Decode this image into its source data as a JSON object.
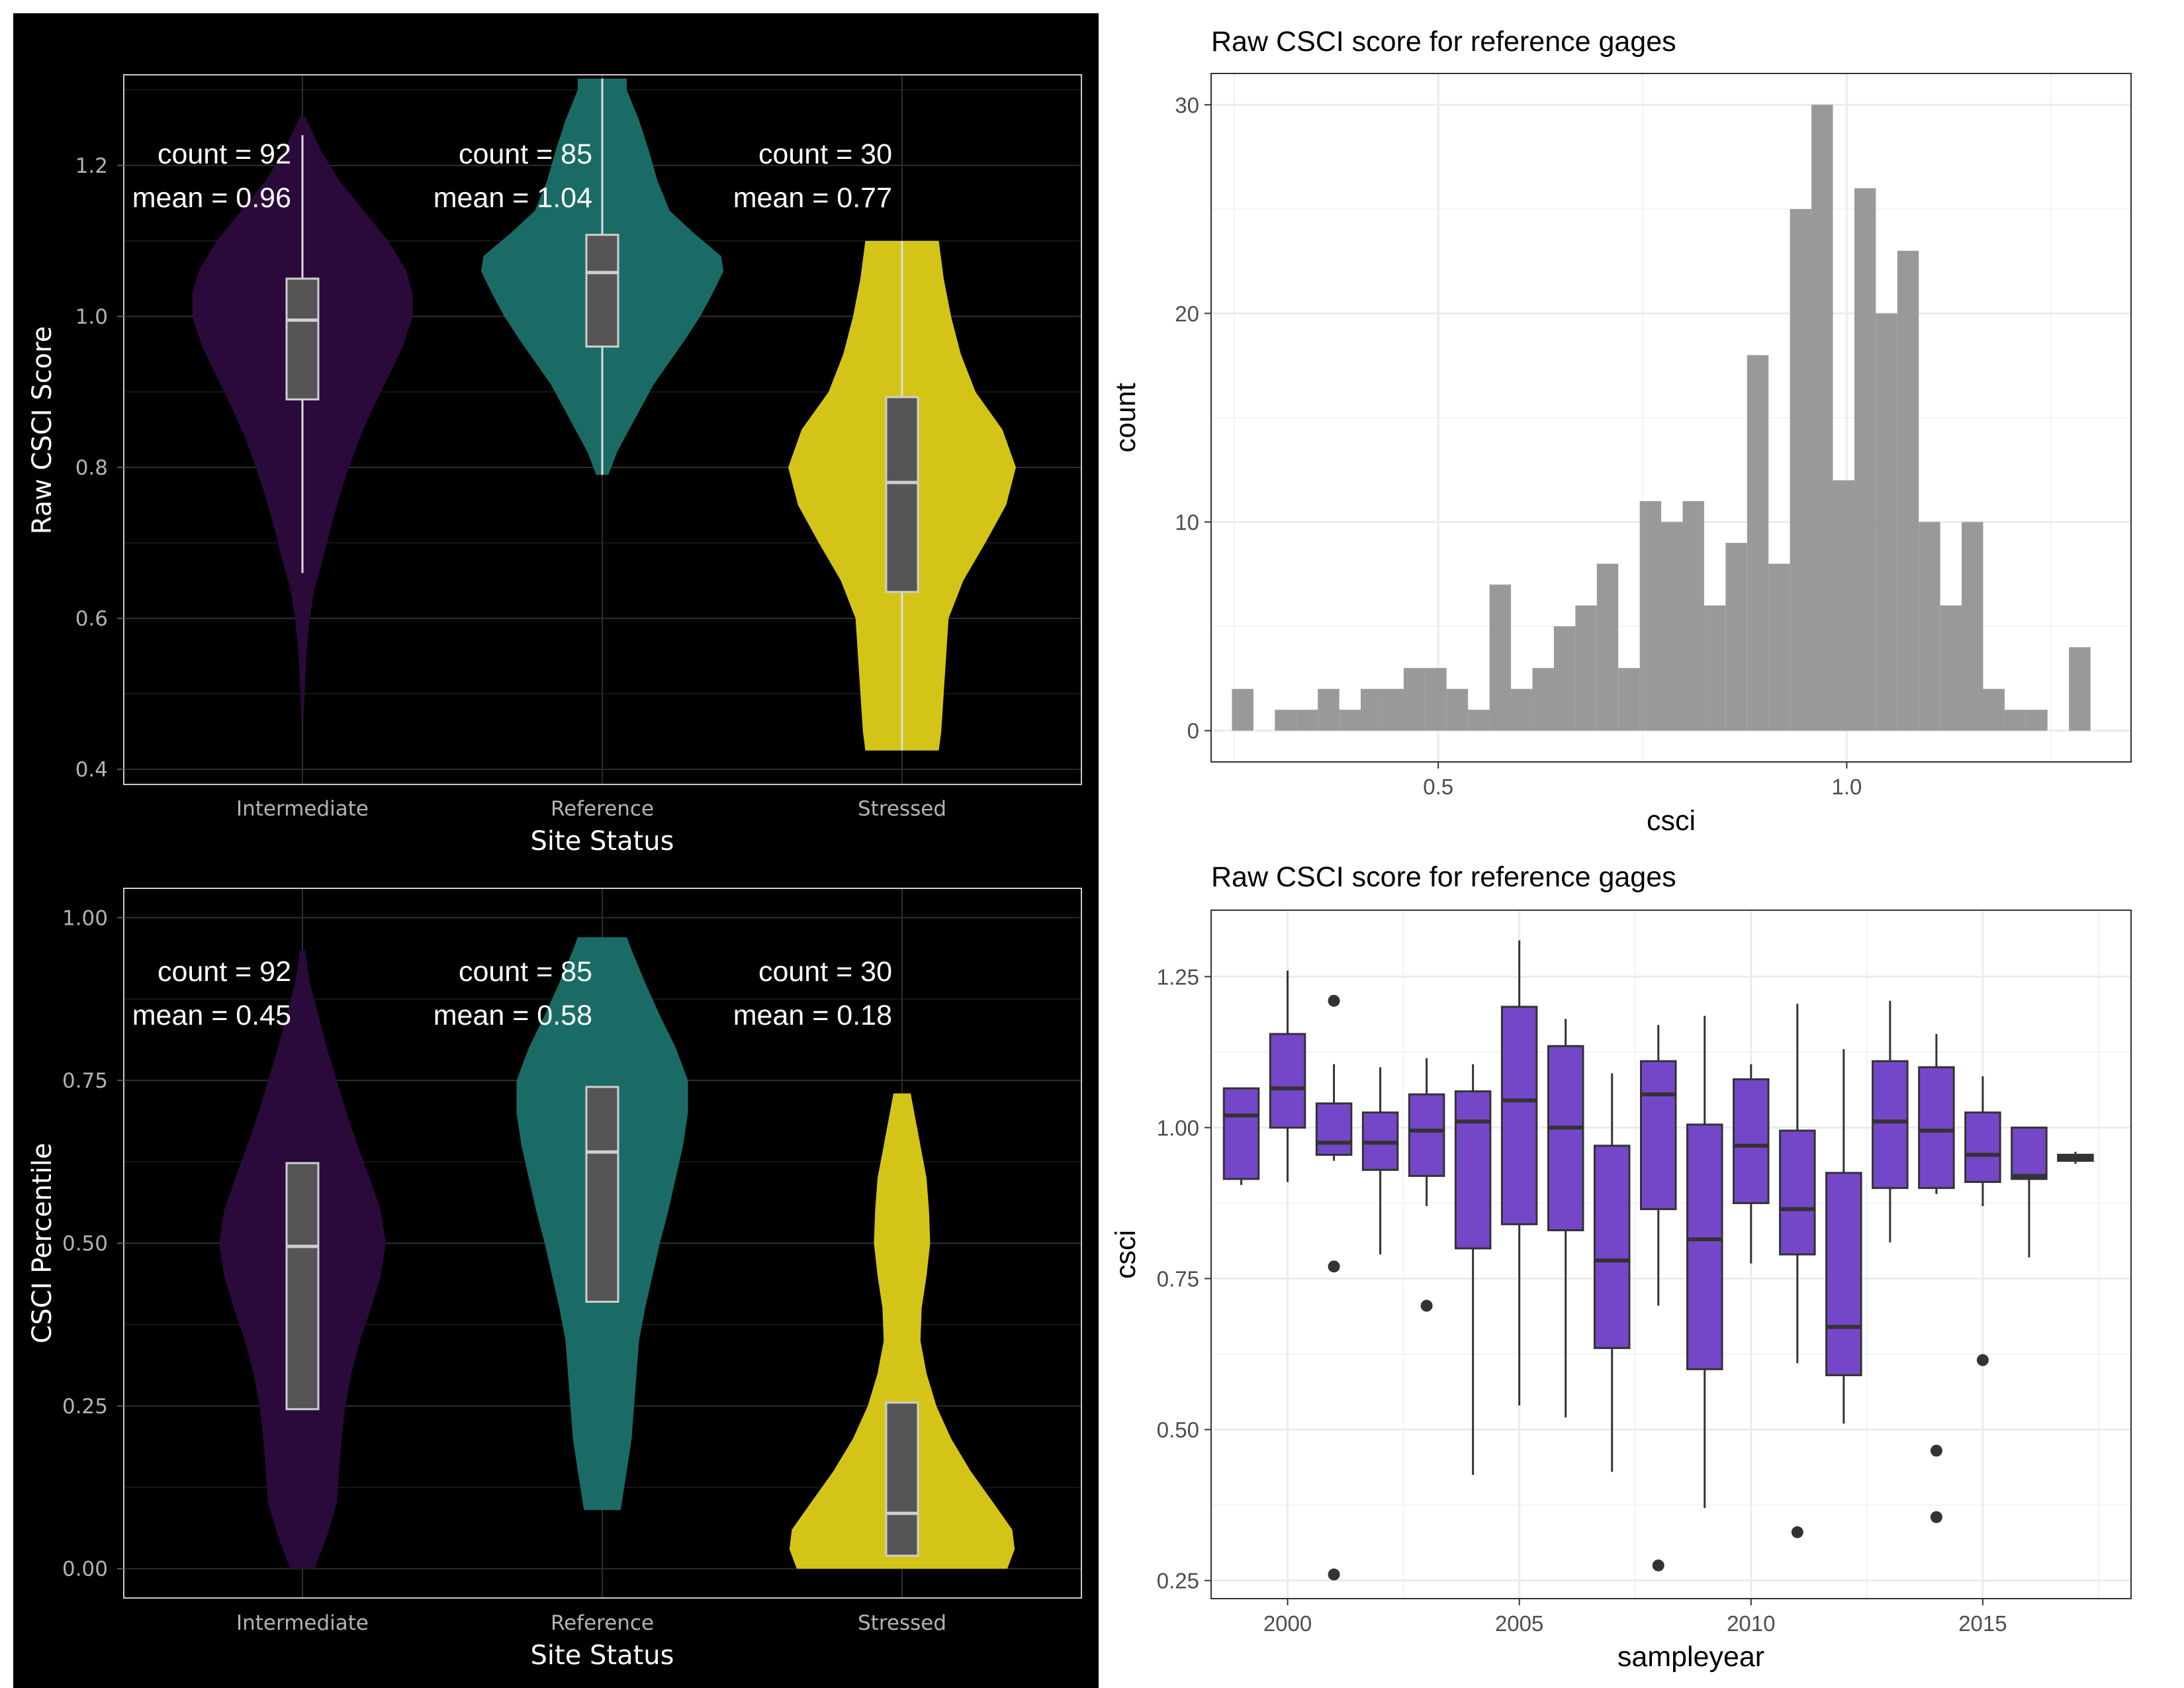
{
  "chart_data": [
    {
      "id": "violin_raw",
      "type": "violin",
      "theme": "dark",
      "xlabel": "Site Status",
      "ylabel": "Raw CSCI Score",
      "categories": [
        "Intermediate",
        "Reference",
        "Stressed"
      ],
      "colors": [
        "#2a0a3a",
        "#1a6b66",
        "#d4c418"
      ],
      "ylim": [
        0.38,
        1.32
      ],
      "yticks": [
        0.4,
        0.6,
        0.8,
        1.0,
        1.2
      ],
      "ytick_labels": [
        "0.4",
        "0.6",
        "0.8",
        "1.0",
        "1.2"
      ],
      "annotations": [
        {
          "line1": "count = 92",
          "line2": "mean = 0.96"
        },
        {
          "line1": "count = 85",
          "line2": "mean = 1.04"
        },
        {
          "line1": "count = 30",
          "line2": "mean = 0.77"
        }
      ],
      "violins": [
        {
          "profile": [
            [
              0.47,
              0.01
            ],
            [
              0.55,
              0.03
            ],
            [
              0.6,
              0.06
            ],
            [
              0.64,
              0.1
            ],
            [
              0.68,
              0.17
            ],
            [
              0.72,
              0.23
            ],
            [
              0.76,
              0.3
            ],
            [
              0.8,
              0.38
            ],
            [
              0.84,
              0.47
            ],
            [
              0.88,
              0.58
            ],
            [
              0.92,
              0.7
            ],
            [
              0.96,
              0.82
            ],
            [
              1.0,
              0.9
            ],
            [
              1.03,
              0.9
            ],
            [
              1.06,
              0.85
            ],
            [
              1.1,
              0.7
            ],
            [
              1.14,
              0.5
            ],
            [
              1.18,
              0.3
            ],
            [
              1.22,
              0.15
            ],
            [
              1.265,
              0.02
            ]
          ],
          "box": {
            "q1": 0.89,
            "median": 0.995,
            "q3": 1.05
          },
          "whisker": [
            0.66,
            1.24
          ]
        },
        {
          "profile": [
            [
              0.79,
              0.05
            ],
            [
              0.82,
              0.12
            ],
            [
              0.85,
              0.22
            ],
            [
              0.88,
              0.32
            ],
            [
              0.91,
              0.42
            ],
            [
              0.94,
              0.55
            ],
            [
              0.97,
              0.68
            ],
            [
              1.0,
              0.8
            ],
            [
              1.03,
              0.9
            ],
            [
              1.06,
              0.99
            ],
            [
              1.08,
              0.97
            ],
            [
              1.11,
              0.75
            ],
            [
              1.14,
              0.55
            ],
            [
              1.18,
              0.45
            ],
            [
              1.22,
              0.38
            ],
            [
              1.26,
              0.3
            ],
            [
              1.3,
              0.2
            ],
            [
              1.315,
              0.2
            ]
          ],
          "box": {
            "q1": 0.96,
            "median": 1.058,
            "q3": 1.108
          },
          "whisker": [
            0.79,
            1.315
          ]
        },
        {
          "profile": [
            [
              0.425,
              0.3
            ],
            [
              0.45,
              0.32
            ],
            [
              0.5,
              0.34
            ],
            [
              0.55,
              0.36
            ],
            [
              0.6,
              0.38
            ],
            [
              0.65,
              0.5
            ],
            [
              0.7,
              0.68
            ],
            [
              0.75,
              0.85
            ],
            [
              0.8,
              0.93
            ],
            [
              0.85,
              0.82
            ],
            [
              0.9,
              0.6
            ],
            [
              0.95,
              0.48
            ],
            [
              1.0,
              0.4
            ],
            [
              1.05,
              0.34
            ],
            [
              1.1,
              0.3
            ]
          ],
          "box": {
            "q1": 0.635,
            "median": 0.78,
            "q3": 0.893
          },
          "whisker": [
            0.425,
            1.1
          ]
        }
      ]
    },
    {
      "id": "violin_pct",
      "type": "violin",
      "theme": "dark",
      "xlabel": "Site Status",
      "ylabel": "CSCI Percentile",
      "categories": [
        "Intermediate",
        "Reference",
        "Stressed"
      ],
      "colors": [
        "#2a0a3a",
        "#1a6b66",
        "#d4c418"
      ],
      "ylim": [
        -0.045,
        1.045
      ],
      "yticks": [
        0.0,
        0.25,
        0.5,
        0.75,
        1.0
      ],
      "ytick_labels": [
        "0.00",
        "0.25",
        "0.50",
        "0.75",
        "1.00"
      ],
      "annotations": [
        {
          "line1": "count = 92",
          "line2": "mean = 0.45"
        },
        {
          "line1": "count = 85",
          "line2": "mean = 0.58"
        },
        {
          "line1": "count = 30",
          "line2": "mean = 0.18"
        }
      ],
      "violins": [
        {
          "profile": [
            [
              0.0,
              0.1
            ],
            [
              0.05,
              0.2
            ],
            [
              0.1,
              0.28
            ],
            [
              0.15,
              0.3
            ],
            [
              0.2,
              0.32
            ],
            [
              0.25,
              0.35
            ],
            [
              0.3,
              0.4
            ],
            [
              0.35,
              0.47
            ],
            [
              0.4,
              0.56
            ],
            [
              0.45,
              0.64
            ],
            [
              0.5,
              0.68
            ],
            [
              0.55,
              0.64
            ],
            [
              0.6,
              0.55
            ],
            [
              0.65,
              0.45
            ],
            [
              0.7,
              0.36
            ],
            [
              0.75,
              0.28
            ],
            [
              0.8,
              0.2
            ],
            [
              0.85,
              0.13
            ],
            [
              0.9,
              0.06
            ],
            [
              0.95,
              0.02
            ]
          ],
          "box": {
            "q1": 0.245,
            "median": 0.495,
            "q3": 0.623
          },
          "whisker": null
        },
        {
          "profile": [
            [
              0.09,
              0.15
            ],
            [
              0.15,
              0.2
            ],
            [
              0.2,
              0.24
            ],
            [
              0.25,
              0.26
            ],
            [
              0.3,
              0.28
            ],
            [
              0.35,
              0.3
            ],
            [
              0.4,
              0.35
            ],
            [
              0.45,
              0.41
            ],
            [
              0.5,
              0.47
            ],
            [
              0.55,
              0.54
            ],
            [
              0.6,
              0.6
            ],
            [
              0.65,
              0.66
            ],
            [
              0.7,
              0.7
            ],
            [
              0.75,
              0.7
            ],
            [
              0.8,
              0.6
            ],
            [
              0.85,
              0.47
            ],
            [
              0.9,
              0.35
            ],
            [
              0.95,
              0.24
            ],
            [
              0.97,
              0.2
            ]
          ],
          "box": {
            "q1": 0.41,
            "median": 0.64,
            "q3": 0.74
          },
          "whisker": null
        },
        {
          "profile": [
            [
              0.0,
              0.86
            ],
            [
              0.03,
              0.92
            ],
            [
              0.06,
              0.9
            ],
            [
              0.1,
              0.75
            ],
            [
              0.15,
              0.56
            ],
            [
              0.2,
              0.4
            ],
            [
              0.25,
              0.28
            ],
            [
              0.3,
              0.2
            ],
            [
              0.35,
              0.15
            ],
            [
              0.4,
              0.16
            ],
            [
              0.45,
              0.2
            ],
            [
              0.5,
              0.23
            ],
            [
              0.55,
              0.22
            ],
            [
              0.6,
              0.2
            ],
            [
              0.65,
              0.15
            ],
            [
              0.7,
              0.1
            ],
            [
              0.73,
              0.07
            ]
          ],
          "box": {
            "q1": 0.02,
            "median": 0.085,
            "q3": 0.255
          },
          "whisker": null
        }
      ]
    },
    {
      "id": "histogram",
      "type": "bar",
      "title": "Raw CSCI score for reference gages",
      "xlabel": "csci",
      "ylabel": "count",
      "xlim": [
        0.222,
        1.348
      ],
      "ylim": [
        -1.5,
        31.5
      ],
      "xticks": [
        0.5,
        1.0
      ],
      "xtick_labels": [
        "0.5",
        "1.0"
      ],
      "yticks": [
        0,
        10,
        20,
        30
      ],
      "ytick_labels": [
        "0",
        "10",
        "20",
        "30"
      ],
      "bar_color": "#999999",
      "bin_start": 0.2475,
      "bin_width": 0.02627,
      "counts": [
        2,
        0,
        1,
        1,
        2,
        1,
        2,
        2,
        3,
        3,
        2,
        1,
        7,
        2,
        3,
        5,
        6,
        8,
        3,
        11,
        10,
        11,
        6,
        9,
        18,
        8,
        25,
        30,
        12,
        26,
        20,
        23,
        10,
        6,
        10,
        2,
        1,
        1,
        0,
        4
      ]
    },
    {
      "id": "boxplot",
      "type": "box",
      "title": "Raw CSCI score for reference gages",
      "xlabel": "sampleyear",
      "ylabel": "csci",
      "xlim": [
        1998.35,
        2018.2
      ],
      "ylim": [
        0.22,
        1.36
      ],
      "xticks": [
        2000,
        2005,
        2010,
        2015
      ],
      "xtick_labels": [
        "2000",
        "2005",
        "2010",
        "2015"
      ],
      "yticks": [
        0.25,
        0.5,
        0.75,
        1.0,
        1.25
      ],
      "ytick_labels": [
        "0.25",
        "0.50",
        "0.75",
        "1.00",
        "1.25"
      ],
      "box_color": "#7447c9",
      "boxes": [
        {
          "year": 1999,
          "lo": 0.905,
          "q1": 0.915,
          "med": 1.02,
          "q3": 1.065,
          "hi": 1.065,
          "out": []
        },
        {
          "year": 2000,
          "lo": 0.91,
          "q1": 1.0,
          "med": 1.065,
          "q3": 1.155,
          "hi": 1.26,
          "out": []
        },
        {
          "year": 2001,
          "lo": 0.945,
          "q1": 0.955,
          "med": 0.975,
          "q3": 1.04,
          "hi": 1.105,
          "out": [
            1.21,
            0.77,
            0.26
          ]
        },
        {
          "year": 2002,
          "lo": 0.79,
          "q1": 0.93,
          "med": 0.975,
          "q3": 1.025,
          "hi": 1.1,
          "out": []
        },
        {
          "year": 2003,
          "lo": 0.87,
          "q1": 0.92,
          "med": 0.995,
          "q3": 1.055,
          "hi": 1.115,
          "out": [
            0.705
          ]
        },
        {
          "year": 2004,
          "lo": 0.425,
          "q1": 0.8,
          "med": 1.01,
          "q3": 1.06,
          "hi": 1.105,
          "out": []
        },
        {
          "year": 2005,
          "lo": 0.54,
          "q1": 0.84,
          "med": 1.045,
          "q3": 1.2,
          "hi": 1.31,
          "out": []
        },
        {
          "year": 2006,
          "lo": 0.52,
          "q1": 0.83,
          "med": 1.0,
          "q3": 1.135,
          "hi": 1.18,
          "out": []
        },
        {
          "year": 2007,
          "lo": 0.43,
          "q1": 0.635,
          "med": 0.78,
          "q3": 0.97,
          "hi": 1.09,
          "out": []
        },
        {
          "year": 2008,
          "lo": 0.705,
          "q1": 0.865,
          "med": 1.055,
          "q3": 1.11,
          "hi": 1.17,
          "out": [
            0.275
          ]
        },
        {
          "year": 2009,
          "lo": 0.37,
          "q1": 0.6,
          "med": 0.815,
          "q3": 1.005,
          "hi": 1.185,
          "out": []
        },
        {
          "year": 2010,
          "lo": 0.775,
          "q1": 0.875,
          "med": 0.97,
          "q3": 1.08,
          "hi": 1.105,
          "out": []
        },
        {
          "year": 2011,
          "lo": 0.61,
          "q1": 0.79,
          "med": 0.865,
          "q3": 0.995,
          "hi": 1.205,
          "out": [
            0.33
          ]
        },
        {
          "year": 2012,
          "lo": 0.51,
          "q1": 0.59,
          "med": 0.67,
          "q3": 0.925,
          "hi": 1.13,
          "out": []
        },
        {
          "year": 2013,
          "lo": 0.81,
          "q1": 0.9,
          "med": 1.01,
          "q3": 1.11,
          "hi": 1.21,
          "out": []
        },
        {
          "year": 2014,
          "lo": 0.89,
          "q1": 0.9,
          "med": 0.995,
          "q3": 1.1,
          "hi": 1.155,
          "out": [
            0.465,
            0.355
          ]
        },
        {
          "year": 2015,
          "lo": 0.87,
          "q1": 0.91,
          "med": 0.955,
          "q3": 1.025,
          "hi": 1.085,
          "out": [
            0.615
          ]
        },
        {
          "year": 2016,
          "lo": 0.785,
          "q1": 0.915,
          "med": 0.92,
          "q3": 1.0,
          "hi": 1.0,
          "out": []
        },
        {
          "year": 2017,
          "lo": 0.94,
          "q1": 0.945,
          "med": 0.95,
          "q3": 0.955,
          "hi": 0.96,
          "out": []
        }
      ]
    }
  ]
}
